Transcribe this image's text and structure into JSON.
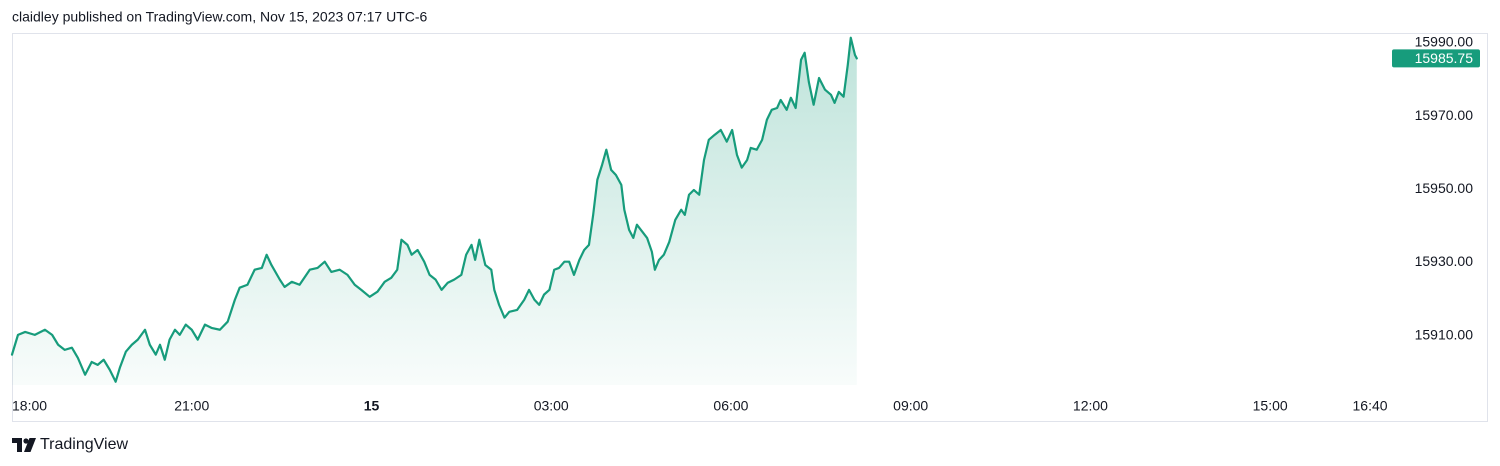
{
  "header_text": "claidley published on TradingView.com, Nov 15, 2023 07:17 UTC-6",
  "brand": "TradingView",
  "chart_data": {
    "type": "area",
    "grid": false,
    "xlim": [
      18,
      41
    ],
    "xticks": [
      {
        "value": 18,
        "label": "18:00"
      },
      {
        "value": 21,
        "label": "21:00"
      },
      {
        "value": 24,
        "label": "15"
      },
      {
        "value": 27,
        "label": "03:00"
      },
      {
        "value": 30,
        "label": "06:00"
      },
      {
        "value": 33,
        "label": "09:00"
      },
      {
        "value": 36,
        "label": "12:00"
      },
      {
        "value": 39,
        "label": "15:00"
      },
      {
        "value": 40.667,
        "label": "16:40"
      }
    ],
    "ylim": [
      15896.5,
      15992.7
    ],
    "yticks": [
      {
        "value": 15910,
        "label": "15910.00"
      },
      {
        "value": 15930,
        "label": "15930.00"
      },
      {
        "value": 15950,
        "label": "15950.00"
      },
      {
        "value": 15970,
        "label": "15970.00"
      },
      {
        "value": 15990,
        "label": "15990.00"
      }
    ],
    "x": [
      18.0,
      18.1,
      18.22,
      18.38,
      18.55,
      18.67,
      18.77,
      18.88,
      19.0,
      19.1,
      19.22,
      19.33,
      19.43,
      19.53,
      19.63,
      19.73,
      19.8,
      19.9,
      20.0,
      20.1,
      20.22,
      20.3,
      20.4,
      20.47,
      20.55,
      20.63,
      20.72,
      20.8,
      20.9,
      21.0,
      21.1,
      21.22,
      21.33,
      21.47,
      21.6,
      21.72,
      21.8,
      21.93,
      22.05,
      22.17,
      22.25,
      22.33,
      22.47,
      22.55,
      22.67,
      22.8,
      22.97,
      23.1,
      23.22,
      23.33,
      23.47,
      23.6,
      23.72,
      23.83,
      23.97,
      24.1,
      24.22,
      24.33,
      24.43,
      24.5,
      24.6,
      24.67,
      24.77,
      24.88,
      24.97,
      25.07,
      25.17,
      25.27,
      25.38,
      25.5,
      25.58,
      25.67,
      25.73,
      25.8,
      25.9,
      26.0,
      26.05,
      26.13,
      26.22,
      26.3,
      26.43,
      26.55,
      26.63,
      26.72,
      26.8,
      26.88,
      26.97,
      27.05,
      27.13,
      27.22,
      27.3,
      27.38,
      27.47,
      27.55,
      27.63,
      27.7,
      27.77,
      27.85,
      27.92,
      28.0,
      28.08,
      28.17,
      28.22,
      28.3,
      28.37,
      28.43,
      28.52,
      28.6,
      28.68,
      28.73,
      28.8,
      28.88,
      28.97,
      29.07,
      29.17,
      29.23,
      29.3,
      29.38,
      29.47,
      29.55,
      29.63,
      29.73,
      29.83,
      29.93,
      30.02,
      30.1,
      30.18,
      30.27,
      30.33,
      30.43,
      30.52,
      30.6,
      30.68,
      30.77,
      30.83,
      30.93,
      31.0,
      31.08,
      31.17,
      31.23,
      31.3,
      31.38,
      31.47,
      31.57,
      31.67,
      31.73,
      31.8,
      31.88,
      31.95,
      32.0,
      32.07,
      32.1
    ],
    "series": [
      {
        "color": "#179c7c",
        "values": [
          15904.8,
          15910.2,
          15911.0,
          15910.2,
          15911.6,
          15910.2,
          15907.5,
          15906.1,
          15906.7,
          15903.9,
          15899.3,
          15902.8,
          15902.0,
          15903.4,
          15900.7,
          15897.4,
          15901.2,
          15905.6,
          15907.5,
          15908.9,
          15911.6,
          15907.5,
          15904.8,
          15907.5,
          15903.4,
          15908.9,
          15911.6,
          15910.2,
          15913.0,
          15911.6,
          15908.9,
          15913.0,
          15912.1,
          15911.6,
          15913.8,
          15919.8,
          15923.1,
          15923.9,
          15928.0,
          15928.5,
          15932.1,
          15929.3,
          15925.3,
          15923.3,
          15924.7,
          15923.9,
          15928.0,
          15928.5,
          15930.2,
          15927.4,
          15928.0,
          15926.6,
          15923.9,
          15922.5,
          15920.6,
          15922.0,
          15924.7,
          15925.8,
          15928.0,
          15936.2,
          15934.8,
          15932.1,
          15933.4,
          15930.2,
          15926.6,
          15925.3,
          15922.5,
          15924.4,
          15925.3,
          15926.6,
          15932.1,
          15934.8,
          15930.7,
          15936.2,
          15929.3,
          15928.0,
          15922.5,
          15918.4,
          15914.9,
          15916.5,
          15917.0,
          15919.8,
          15922.5,
          15919.8,
          15918.4,
          15921.2,
          15922.5,
          15928.0,
          15928.5,
          15930.2,
          15930.2,
          15926.6,
          15930.7,
          15933.4,
          15934.8,
          15943.0,
          15952.6,
          15956.7,
          15960.8,
          15955.3,
          15953.9,
          15951.2,
          15944.4,
          15938.9,
          15936.7,
          15940.3,
          15938.4,
          15936.7,
          15932.9,
          15928.0,
          15930.7,
          15932.1,
          15935.6,
          15941.6,
          15944.4,
          15943.0,
          15948.5,
          15949.8,
          15948.5,
          15958.0,
          15963.5,
          15964.9,
          15966.2,
          15963.0,
          15966.2,
          15959.4,
          15955.9,
          15958.0,
          15961.3,
          15960.8,
          15963.5,
          15969.0,
          15971.7,
          15972.2,
          15974.4,
          15971.7,
          15975.0,
          15972.2,
          15985.4,
          15987.3,
          15979.3,
          15973.1,
          15980.4,
          15977.2,
          15975.8,
          15973.6,
          15976.6,
          15975.3,
          15984.0,
          15991.4,
          15986.7,
          15985.75
        ]
      }
    ]
  }
}
